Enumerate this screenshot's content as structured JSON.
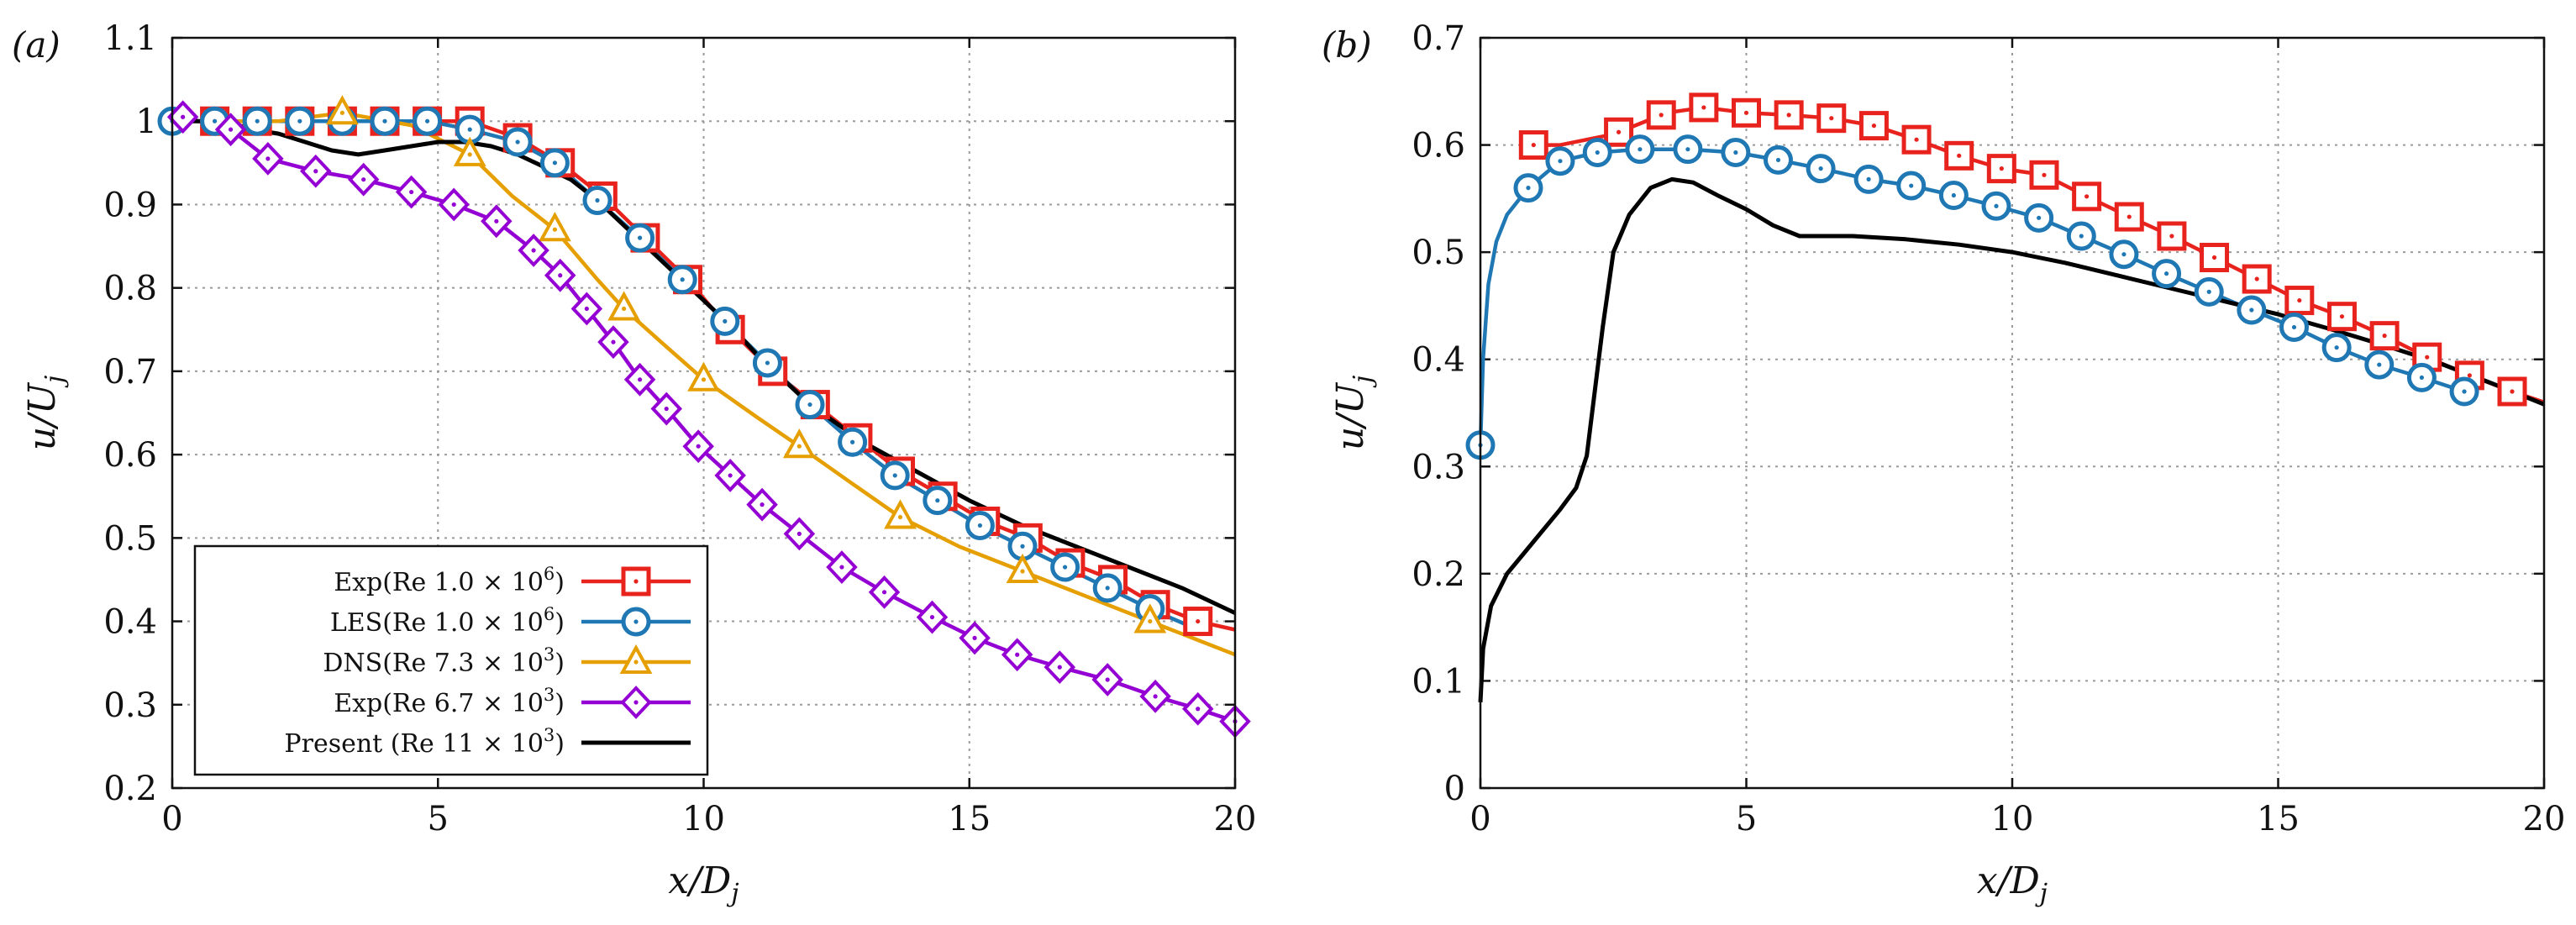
{
  "chart_data": [
    {
      "type": "line",
      "panel_label": "(a)",
      "xlabel": "x/D_j",
      "ylabel": "u/U_j",
      "xlim": [
        0,
        20
      ],
      "ylim": [
        0.2,
        1.1
      ],
      "xticks": [
        0,
        5,
        10,
        15,
        20
      ],
      "yticks": [
        0.2,
        0.3,
        0.4,
        0.5,
        0.6,
        0.7,
        0.8,
        0.9,
        1,
        1.1
      ],
      "xtick_labels": [
        "0",
        "5",
        "10",
        "15",
        "20"
      ],
      "ytick_labels": [
        "0.2",
        "0.3",
        "0.4",
        "0.5",
        "0.6",
        "0.7",
        "0.8",
        "0.9",
        "1",
        "1.1"
      ],
      "grid": true,
      "legend_position": "bottom-left",
      "legend_labels": [
        {
          "main": "Exp(Re 1.0 × 10",
          "sup": "6",
          "end": ")"
        },
        {
          "main": "LES(Re 1.0 × 10",
          "sup": "6",
          "end": ")"
        },
        {
          "main": "DNS(Re 7.3 × 10",
          "sup": "3",
          "end": ")"
        },
        {
          "main": "Exp(Re 6.7 × 10",
          "sup": "3",
          "end": ")"
        },
        {
          "main": "Present (Re 11 × 10",
          "sup": "3",
          "end": ")"
        }
      ],
      "series": [
        {
          "name": "Exp(Re 1.0 × 10^6)",
          "color": "#e8231e",
          "marker": "square",
          "x": [
            0.8,
            1.6,
            2.4,
            3.2,
            4.0,
            4.8,
            5.6,
            6.5,
            7.3,
            8.1,
            8.9,
            9.7,
            10.5,
            11.3,
            12.1,
            12.9,
            13.7,
            14.5,
            15.3,
            16.1,
            16.9,
            17.7,
            18.5,
            19.3,
            20
          ],
          "y": [
            1.0,
            1.0,
            1.0,
            1.0,
            1.0,
            1.0,
            1.0,
            0.98,
            0.95,
            0.91,
            0.86,
            0.81,
            0.75,
            0.7,
            0.66,
            0.62,
            0.58,
            0.55,
            0.52,
            0.5,
            0.47,
            0.45,
            0.42,
            0.4,
            0.39
          ],
          "marker_x": [
            0.8,
            1.6,
            2.4,
            3.2,
            4.0,
            4.8,
            5.6,
            6.5,
            7.3,
            8.1,
            8.9,
            9.7,
            10.5,
            11.3,
            12.1,
            12.9,
            13.7,
            14.5,
            15.3,
            16.1,
            16.9,
            17.7,
            18.5,
            19.3
          ]
        },
        {
          "name": "LES(Re 1.0 × 10^6)",
          "color": "#1f78b4",
          "marker": "circle",
          "x": [
            0,
            0.8,
            1.6,
            2.4,
            3.2,
            4.0,
            4.8,
            5.6,
            6.5,
            7.2,
            8.0,
            8.8,
            9.6,
            10.4,
            11.2,
            12.0,
            12.8,
            13.6,
            14.4,
            15.2,
            16.0,
            16.8,
            17.6,
            18.4,
            19.3
          ],
          "y": [
            1.0,
            1.0,
            1.0,
            1.0,
            1.0,
            1.0,
            1.0,
            0.99,
            0.975,
            0.95,
            0.905,
            0.86,
            0.81,
            0.76,
            0.71,
            0.66,
            0.615,
            0.575,
            0.545,
            0.515,
            0.49,
            0.465,
            0.44,
            0.415,
            0.39
          ],
          "marker_x": [
            0,
            0.8,
            1.6,
            2.4,
            3.2,
            4.0,
            4.8,
            5.6,
            6.5,
            7.2,
            8.0,
            8.8,
            9.6,
            10.4,
            11.2,
            12.0,
            12.8,
            13.6,
            14.4,
            15.2,
            16.0,
            16.8,
            17.6,
            18.4
          ]
        },
        {
          "name": "DNS(Re 7.3 × 10^3)",
          "color": "#e69f00",
          "marker": "triangle",
          "x": [
            0,
            1.0,
            2.0,
            3.2,
            4.5,
            5.6,
            6.4,
            7.2,
            8.0,
            8.5,
            9.2,
            10.0,
            11.0,
            11.8,
            12.8,
            13.7,
            14.8,
            16.0,
            17.2,
            18.4,
            20
          ],
          "y": [
            1.0,
            1.0,
            1.0,
            1.01,
            0.995,
            0.96,
            0.91,
            0.87,
            0.81,
            0.775,
            0.735,
            0.69,
            0.645,
            0.61,
            0.565,
            0.525,
            0.49,
            0.46,
            0.43,
            0.4,
            0.36
          ],
          "marker_x": [
            3.2,
            5.6,
            7.2,
            8.5,
            10.0,
            11.8,
            13.7,
            16.0,
            18.4
          ]
        },
        {
          "name": "Exp(Re 6.7 × 10^3)",
          "color": "#9400d3",
          "marker": "diamond",
          "x": [
            0.2,
            1.1,
            1.8,
            2.7,
            3.6,
            4.5,
            5.3,
            6.1,
            6.8,
            7.3,
            7.8,
            8.3,
            8.8,
            9.3,
            9.9,
            10.5,
            11.1,
            11.8,
            12.6,
            13.4,
            14.3,
            15.1,
            15.9,
            16.7,
            17.6,
            18.5,
            19.3,
            20
          ],
          "y": [
            1.005,
            0.99,
            0.955,
            0.94,
            0.93,
            0.915,
            0.9,
            0.88,
            0.845,
            0.815,
            0.775,
            0.735,
            0.69,
            0.655,
            0.61,
            0.575,
            0.54,
            0.505,
            0.465,
            0.435,
            0.405,
            0.38,
            0.36,
            0.345,
            0.33,
            0.31,
            0.295,
            0.28
          ],
          "marker_x": [
            0.2,
            1.1,
            1.8,
            2.7,
            3.6,
            4.5,
            5.3,
            6.1,
            6.8,
            7.3,
            7.8,
            8.3,
            8.8,
            9.3,
            9.9,
            10.5,
            11.1,
            11.8,
            12.6,
            13.4,
            14.3,
            15.1,
            15.9,
            16.7,
            17.6,
            18.5,
            19.3,
            20
          ]
        },
        {
          "name": "Present (Re 11 × 10^3)",
          "color": "#000000",
          "marker": "none",
          "x": [
            0,
            1.0,
            1.5,
            2.0,
            2.5,
            3.0,
            3.5,
            4.0,
            4.5,
            5.0,
            5.5,
            6.0,
            6.5,
            7.0,
            7.5,
            8.0,
            8.5,
            9.0,
            9.5,
            10.0,
            10.5,
            11.0,
            11.5,
            12.0,
            13.0,
            14.0,
            15.0,
            16.0,
            17.0,
            18.0,
            19.0,
            20
          ],
          "y": [
            1.0,
            1.0,
            0.99,
            0.985,
            0.975,
            0.965,
            0.96,
            0.965,
            0.97,
            0.975,
            0.975,
            0.97,
            0.96,
            0.945,
            0.93,
            0.905,
            0.875,
            0.845,
            0.815,
            0.785,
            0.755,
            0.72,
            0.69,
            0.66,
            0.615,
            0.58,
            0.545,
            0.515,
            0.49,
            0.465,
            0.44,
            0.41
          ]
        }
      ]
    },
    {
      "type": "line",
      "panel_label": "(b)",
      "xlabel": "x/D_j",
      "ylabel": "u/U_j",
      "xlim": [
        0,
        20
      ],
      "ylim": [
        0,
        0.7
      ],
      "xticks": [
        0,
        5,
        10,
        15,
        20
      ],
      "yticks": [
        0,
        0.1,
        0.2,
        0.3,
        0.4,
        0.5,
        0.6,
        0.7
      ],
      "xtick_labels": [
        "0",
        "5",
        "10",
        "15",
        "20"
      ],
      "ytick_labels": [
        "0",
        "0.1",
        "0.2",
        "0.3",
        "0.4",
        "0.5",
        "0.6",
        "0.7"
      ],
      "grid": true,
      "series": [
        {
          "name": "Exp(Re 1.0 × 10^6)",
          "color": "#e8231e",
          "marker": "square",
          "x": [
            1.0,
            1.5,
            2.0,
            2.5,
            3.0,
            3.5,
            4.2,
            5.0,
            5.8,
            6.6,
            7.4,
            8.2,
            9.0,
            9.8,
            10.6,
            11.4,
            12.2,
            13.0,
            13.8,
            14.6,
            15.4,
            16.2,
            17.0,
            17.8,
            18.6,
            19.4,
            20
          ],
          "y": [
            0.6,
            0.6,
            0.605,
            0.61,
            0.62,
            0.63,
            0.635,
            0.63,
            0.628,
            0.625,
            0.618,
            0.605,
            0.59,
            0.578,
            0.572,
            0.552,
            0.533,
            0.515,
            0.495,
            0.475,
            0.455,
            0.44,
            0.422,
            0.402,
            0.385,
            0.37,
            0.36
          ],
          "marker_x": [
            1.0,
            2.6,
            3.4,
            4.2,
            5.0,
            5.8,
            6.6,
            7.4,
            8.2,
            9.0,
            9.8,
            10.6,
            11.4,
            12.2,
            13.0,
            13.8,
            14.6,
            15.4,
            16.2,
            17.0,
            17.8,
            18.6,
            19.4
          ]
        },
        {
          "name": "LES(Re 1.0 × 10^6)",
          "color": "#1f78b4",
          "marker": "circle",
          "x": [
            0,
            0.05,
            0.15,
            0.3,
            0.5,
            0.9,
            1.5,
            2.2,
            3.0,
            3.9,
            4.8,
            5.6,
            6.4,
            7.3,
            8.1,
            8.9,
            9.7,
            10.5,
            11.3,
            12.1,
            12.9,
            13.7,
            14.5,
            15.3,
            16.1,
            16.9,
            17.7,
            18.5
          ],
          "y": [
            0.32,
            0.4,
            0.47,
            0.51,
            0.535,
            0.56,
            0.585,
            0.593,
            0.596,
            0.596,
            0.593,
            0.586,
            0.578,
            0.568,
            0.562,
            0.553,
            0.543,
            0.532,
            0.515,
            0.498,
            0.48,
            0.463,
            0.446,
            0.43,
            0.411,
            0.395,
            0.383,
            0.37
          ],
          "marker_x": [
            0,
            0.9,
            1.5,
            2.2,
            3.0,
            3.9,
            4.8,
            5.6,
            6.4,
            7.3,
            8.1,
            8.9,
            9.7,
            10.5,
            11.3,
            12.1,
            12.9,
            13.7,
            14.5,
            15.3,
            16.1,
            16.9,
            17.7,
            18.5
          ]
        },
        {
          "name": "Present (Re 11 × 10^3)",
          "color": "#000000",
          "marker": "none",
          "x": [
            0,
            0.05,
            0.2,
            0.5,
            1.0,
            1.5,
            1.8,
            2.0,
            2.15,
            2.3,
            2.5,
            2.8,
            3.2,
            3.6,
            4.0,
            4.5,
            5.0,
            5.5,
            6.0,
            7.0,
            8.0,
            9.0,
            10.0,
            11.0,
            12.0,
            13.0,
            14.0,
            15.0,
            16.0,
            17.0,
            18.0,
            19.0,
            20
          ],
          "y": [
            0.08,
            0.13,
            0.17,
            0.2,
            0.23,
            0.26,
            0.28,
            0.31,
            0.37,
            0.43,
            0.5,
            0.535,
            0.56,
            0.568,
            0.565,
            0.552,
            0.54,
            0.525,
            0.515,
            0.515,
            0.512,
            0.507,
            0.5,
            0.49,
            0.478,
            0.466,
            0.454,
            0.442,
            0.428,
            0.413,
            0.397,
            0.378,
            0.358
          ]
        }
      ]
    }
  ]
}
